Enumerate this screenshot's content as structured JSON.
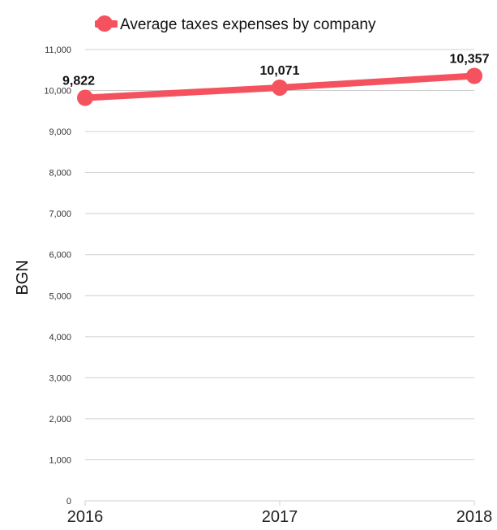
{
  "chart_data": {
    "type": "line",
    "x": [
      "2016",
      "2017",
      "2018"
    ],
    "series": [
      {
        "name": "Average taxes expenses by company",
        "values": [
          9822,
          10071,
          10357
        ],
        "color": "#f4525e"
      }
    ],
    "data_labels": [
      "9,822",
      "10,071",
      "10,357"
    ],
    "ylabel": "BGN",
    "ylim": [
      0,
      11000
    ],
    "yticks": [
      0,
      1000,
      2000,
      3000,
      4000,
      5000,
      6000,
      7000,
      8000,
      9000,
      10000,
      11000
    ],
    "ytick_labels": [
      "0",
      "1,000",
      "2,000",
      "3,000",
      "4,000",
      "5,000",
      "6,000",
      "7,000",
      "8,000",
      "9,000",
      "10,000",
      "11,000"
    ],
    "grid": true,
    "legend": "top-center"
  }
}
